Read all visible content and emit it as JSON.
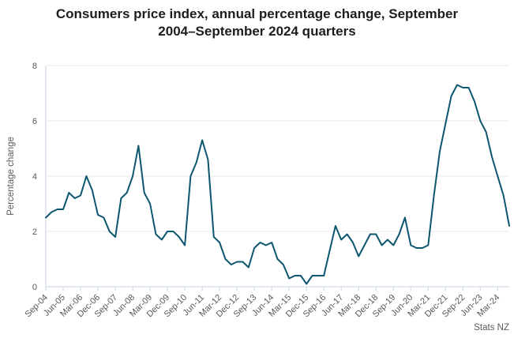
{
  "title": {
    "line1": "Consumers price index, annual percentage change, September",
    "line2": "2004–September 2024 quarters"
  },
  "source": "Stats NZ",
  "colors": {
    "line": "#0d566f",
    "grid": "#e8e8e8",
    "axis": "#c9d3e8",
    "tick_text": "#595959",
    "title_text": "#1d1d1d"
  },
  "chart_data": {
    "type": "line",
    "title": "Consumers price index, annual percentage change, September 2004–September 2024 quarters",
    "xlabel": "",
    "ylabel": "Percentage change",
    "ylim": [
      0,
      8
    ],
    "yticks": [
      0,
      2,
      4,
      6,
      8
    ],
    "grid": "horizontal",
    "legend": "none",
    "line_color": "#0d566f",
    "label_step": 3,
    "x_tick_labels_visible": [
      "Sep-04",
      "Jun-05",
      "Mar-06",
      "Dec-06",
      "Sep-07",
      "Jun-08",
      "Mar-09",
      "Dec-09",
      "Sep-10",
      "Jun-11",
      "Mar-12",
      "Dec-12",
      "Sep-13",
      "Jun-14",
      "Mar-15",
      "Dec-15",
      "Sep-16",
      "Jun-17",
      "Mar-18",
      "Dec-18",
      "Sep-19",
      "Jun-20",
      "Mar-21",
      "Dec-21",
      "Sep-22",
      "Jun-23",
      "Mar-24"
    ],
    "categories": [
      "Sep-04",
      "Dec-04",
      "Mar-05",
      "Jun-05",
      "Sep-05",
      "Dec-05",
      "Mar-06",
      "Jun-06",
      "Sep-06",
      "Dec-06",
      "Mar-07",
      "Jun-07",
      "Sep-07",
      "Dec-07",
      "Mar-08",
      "Jun-08",
      "Sep-08",
      "Dec-08",
      "Mar-09",
      "Jun-09",
      "Sep-09",
      "Dec-09",
      "Mar-10",
      "Jun-10",
      "Sep-10",
      "Dec-10",
      "Mar-11",
      "Jun-11",
      "Sep-11",
      "Dec-11",
      "Mar-12",
      "Jun-12",
      "Sep-12",
      "Dec-12",
      "Mar-13",
      "Jun-13",
      "Sep-13",
      "Dec-13",
      "Mar-14",
      "Jun-14",
      "Sep-14",
      "Dec-14",
      "Mar-15",
      "Jun-15",
      "Sep-15",
      "Dec-15",
      "Mar-16",
      "Jun-16",
      "Sep-16",
      "Dec-16",
      "Mar-17",
      "Jun-17",
      "Sep-17",
      "Dec-17",
      "Mar-18",
      "Jun-18",
      "Sep-18",
      "Dec-18",
      "Mar-19",
      "Jun-19",
      "Sep-19",
      "Dec-19",
      "Mar-20",
      "Jun-20",
      "Sep-20",
      "Dec-20",
      "Mar-21",
      "Jun-21",
      "Sep-21",
      "Dec-21",
      "Mar-22",
      "Jun-22",
      "Sep-22",
      "Dec-22",
      "Mar-23",
      "Jun-23",
      "Sep-23",
      "Dec-23",
      "Mar-24",
      "Jun-24",
      "Sep-24"
    ],
    "values": [
      2.5,
      2.7,
      2.8,
      2.8,
      3.4,
      3.2,
      3.3,
      4.0,
      3.5,
      2.6,
      2.5,
      2.0,
      1.8,
      3.2,
      3.4,
      4.0,
      5.1,
      3.4,
      3.0,
      1.9,
      1.7,
      2.0,
      2.0,
      1.8,
      1.5,
      4.0,
      4.5,
      5.3,
      4.6,
      1.8,
      1.6,
      1.0,
      0.8,
      0.9,
      0.9,
      0.7,
      1.4,
      1.6,
      1.5,
      1.6,
      1.0,
      0.8,
      0.3,
      0.4,
      0.4,
      0.1,
      0.4,
      0.4,
      0.4,
      1.3,
      2.2,
      1.7,
      1.9,
      1.6,
      1.1,
      1.5,
      1.9,
      1.9,
      1.5,
      1.7,
      1.5,
      1.9,
      2.5,
      1.5,
      1.4,
      1.4,
      1.5,
      3.3,
      4.9,
      5.9,
      6.9,
      7.3,
      7.2,
      7.2,
      6.7,
      6.0,
      5.6,
      4.7,
      4.0,
      3.3,
      2.2
    ]
  }
}
